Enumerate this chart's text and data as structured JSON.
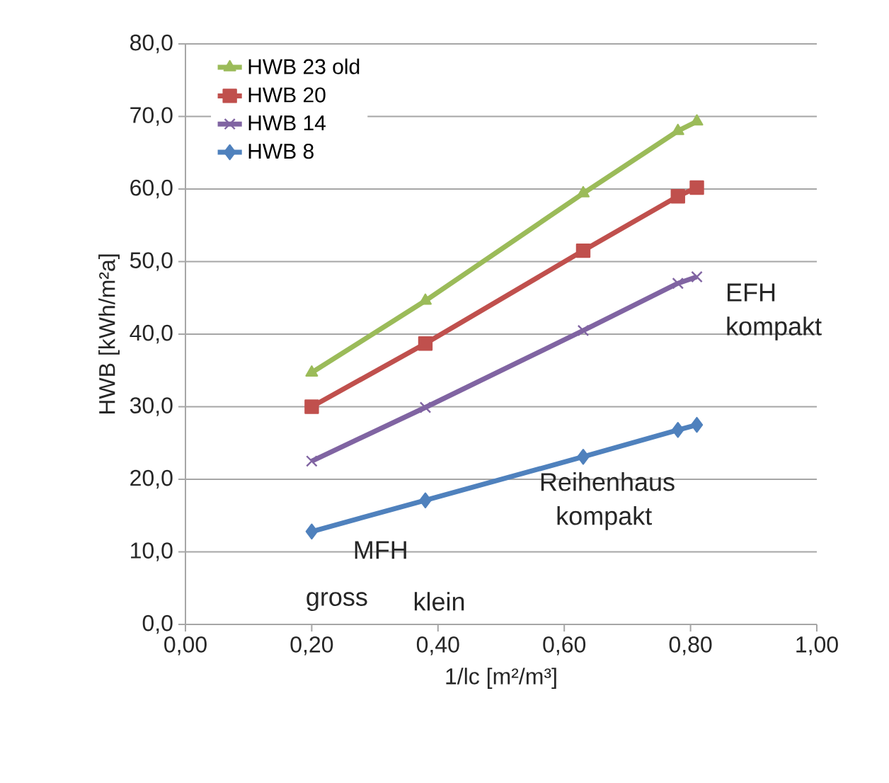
{
  "chart_data": {
    "type": "line",
    "xlabel": "1/lc  [m²/m³]",
    "ylabel": "HWB [kWh/m²a]",
    "x": [
      0.2,
      0.38,
      0.63,
      0.78,
      0.81
    ],
    "series": [
      {
        "name": "HWB 23 old",
        "color": "#9bbb59",
        "marker": "triangle",
        "values": [
          34.7,
          44.6,
          59.4,
          68.0,
          69.3
        ]
      },
      {
        "name": "HWB 20",
        "color": "#c0504d",
        "marker": "square",
        "values": [
          30.0,
          38.7,
          51.5,
          59.0,
          60.2
        ]
      },
      {
        "name": "HWB 14",
        "color": "#8064a2",
        "marker": "cross",
        "values": [
          22.5,
          29.9,
          40.5,
          47.0,
          47.9
        ]
      },
      {
        "name": "HWB 8",
        "color": "#4f81bd",
        "marker": "diamond",
        "values": [
          12.8,
          17.1,
          23.1,
          26.8,
          27.5
        ]
      }
    ],
    "xlim": [
      0,
      1
    ],
    "ylim": [
      0,
      80
    ],
    "xticks": [
      {
        "value": 0,
        "label": "0,00"
      },
      {
        "value": 0.2,
        "label": "0,20"
      },
      {
        "value": 0.4,
        "label": "0,40"
      },
      {
        "value": 0.6,
        "label": "0,60"
      },
      {
        "value": 0.8,
        "label": "0,80"
      },
      {
        "value": 1,
        "label": "1,00"
      }
    ],
    "yticks": [
      {
        "value": 0,
        "label": "0,0"
      },
      {
        "value": 10,
        "label": "10,0"
      },
      {
        "value": 20,
        "label": "20,0"
      },
      {
        "value": 30,
        "label": "30,0"
      },
      {
        "value": 40,
        "label": "40,0"
      },
      {
        "value": 50,
        "label": "50,0"
      },
      {
        "value": 60,
        "label": "60,0"
      },
      {
        "value": 70,
        "label": "70,0"
      },
      {
        "value": 80,
        "label": "80,0"
      }
    ],
    "grid": "y",
    "legend": "top left",
    "line_style": "solid",
    "annotations": [
      "EFH kompakt",
      "Reihenhaus kompakt",
      "MFH",
      "gross",
      "klein"
    ]
  }
}
